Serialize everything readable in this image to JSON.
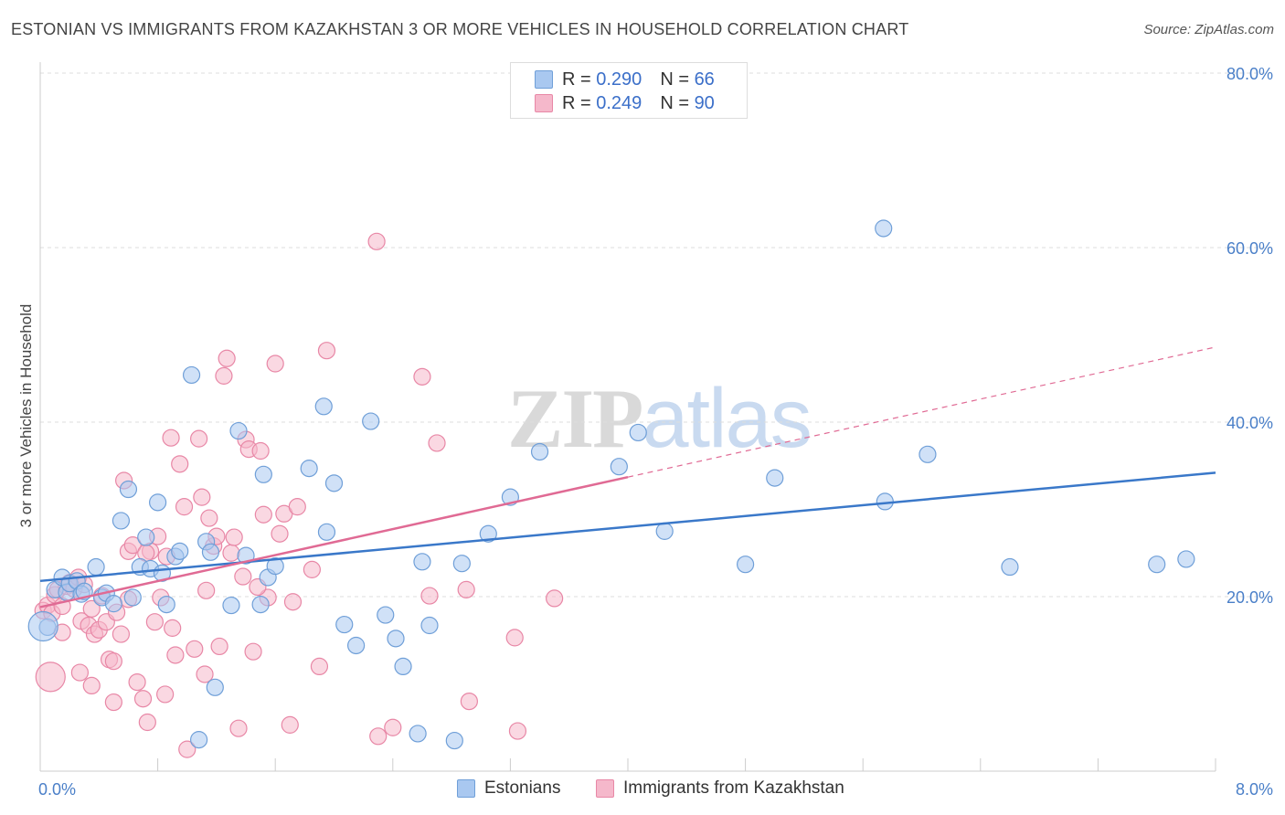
{
  "title": "ESTONIAN VS IMMIGRANTS FROM KAZAKHSTAN 3 OR MORE VEHICLES IN HOUSEHOLD CORRELATION CHART",
  "source": "Source: ZipAtlas.com",
  "watermark": {
    "zip": "ZIP",
    "atlas": "atlas"
  },
  "colors": {
    "estonians_fill": "#a9c8f0",
    "estonians_stroke": "#6f9fd8",
    "estonians_line": "#3a78c9",
    "kazakh_fill": "#f5b8cb",
    "kazakh_stroke": "#e887a6",
    "kazakh_line": "#e06a94",
    "tick_label": "#4a7fc8",
    "grid": "#dddddd"
  },
  "legend_top": [
    {
      "r_label": "R =",
      "r_value": "0.290",
      "n_label": "N =",
      "n_value": "66"
    },
    {
      "r_label": "R =",
      "r_value": "0.249",
      "n_label": "N =",
      "n_value": "90"
    }
  ],
  "chart_data": {
    "type": "scatter",
    "title": "ESTONIAN VS IMMIGRANTS FROM KAZAKHSTAN 3 OR MORE VEHICLES IN HOUSEHOLD CORRELATION CHART",
    "xlabel": "",
    "ylabel": "3 or more Vehicles in Household",
    "xlim": [
      0,
      8
    ],
    "ylim": [
      0,
      80
    ],
    "x_ticks": [
      0,
      8
    ],
    "x_tick_labels": [
      "0.0%",
      "8.0%"
    ],
    "y_ticks": [
      20,
      40,
      60,
      80
    ],
    "y_tick_labels": [
      "20.0%",
      "40.0%",
      "60.0%",
      "80.0%"
    ],
    "grid": true,
    "legend_position": "bottom-center",
    "series": [
      {
        "name": "Estonians",
        "trend": {
          "x0": 0,
          "y0": 21.8,
          "x1": 8,
          "y1": 34.2,
          "dashed_from": null
        },
        "points": [
          [
            0.05,
            16.5
          ],
          [
            0.1,
            20.8
          ],
          [
            0.15,
            22.2
          ],
          [
            0.18,
            20.5
          ],
          [
            0.2,
            21.5
          ],
          [
            0.25,
            21.8
          ],
          [
            0.28,
            20.3
          ],
          [
            0.3,
            20.6
          ],
          [
            0.38,
            23.4
          ],
          [
            0.42,
            19.9
          ],
          [
            0.45,
            20.4
          ],
          [
            0.5,
            19.2
          ],
          [
            0.55,
            28.7
          ],
          [
            0.6,
            32.3
          ],
          [
            0.63,
            19.9
          ],
          [
            0.68,
            23.4
          ],
          [
            0.72,
            26.8
          ],
          [
            0.75,
            23.2
          ],
          [
            0.8,
            30.8
          ],
          [
            0.83,
            22.7
          ],
          [
            0.86,
            19.1
          ],
          [
            0.92,
            24.6
          ],
          [
            0.95,
            25.2
          ],
          [
            1.03,
            45.4
          ],
          [
            1.08,
            3.6
          ],
          [
            1.13,
            26.3
          ],
          [
            1.16,
            25.1
          ],
          [
            1.19,
            9.6
          ],
          [
            1.3,
            19.0
          ],
          [
            1.35,
            39.0
          ],
          [
            1.4,
            24.7
          ],
          [
            1.5,
            19.1
          ],
          [
            1.52,
            34.0
          ],
          [
            1.55,
            22.2
          ],
          [
            1.6,
            23.5
          ],
          [
            1.83,
            34.7
          ],
          [
            1.93,
            41.8
          ],
          [
            1.95,
            27.4
          ],
          [
            2.0,
            33.0
          ],
          [
            2.07,
            16.8
          ],
          [
            2.15,
            14.4
          ],
          [
            2.25,
            40.1
          ],
          [
            2.35,
            17.9
          ],
          [
            2.42,
            15.2
          ],
          [
            2.47,
            12.0
          ],
          [
            2.57,
            4.3
          ],
          [
            2.6,
            24.0
          ],
          [
            2.65,
            16.7
          ],
          [
            2.82,
            3.5
          ],
          [
            2.87,
            23.8
          ],
          [
            3.05,
            27.2
          ],
          [
            3.2,
            31.4
          ],
          [
            3.4,
            36.6
          ],
          [
            3.94,
            34.9
          ],
          [
            4.07,
            38.8
          ],
          [
            4.25,
            27.5
          ],
          [
            4.8,
            23.7
          ],
          [
            5.0,
            33.6
          ],
          [
            5.75,
            30.9
          ],
          [
            5.74,
            62.2
          ],
          [
            6.04,
            36.3
          ],
          [
            6.6,
            23.4
          ],
          [
            7.6,
            23.7
          ],
          [
            7.8,
            24.3
          ]
        ],
        "points_large": [
          [
            0.02,
            16.6
          ]
        ]
      },
      {
        "name": "Immigrants from Kazakhstan",
        "trend": {
          "x0": 0,
          "y0": 18.8,
          "x1": 8,
          "y1": 48.6,
          "dashed_from": 4.0
        },
        "points": [
          [
            0.02,
            18.4
          ],
          [
            0.05,
            19.0
          ],
          [
            0.08,
            18.1
          ],
          [
            0.1,
            20.2
          ],
          [
            0.12,
            20.8
          ],
          [
            0.15,
            18.9
          ],
          [
            0.18,
            21.2
          ],
          [
            0.2,
            21.6
          ],
          [
            0.23,
            20.9
          ],
          [
            0.26,
            22.2
          ],
          [
            0.28,
            17.2
          ],
          [
            0.3,
            21.4
          ],
          [
            0.33,
            16.7
          ],
          [
            0.35,
            18.6
          ],
          [
            0.37,
            15.7
          ],
          [
            0.4,
            16.2
          ],
          [
            0.42,
            20.1
          ],
          [
            0.45,
            17.1
          ],
          [
            0.47,
            12.8
          ],
          [
            0.5,
            7.9
          ],
          [
            0.52,
            18.2
          ],
          [
            0.55,
            15.7
          ],
          [
            0.57,
            33.3
          ],
          [
            0.6,
            25.2
          ],
          [
            0.63,
            25.9
          ],
          [
            0.66,
            10.2
          ],
          [
            0.7,
            8.3
          ],
          [
            0.73,
            5.6
          ],
          [
            0.75,
            25.2
          ],
          [
            0.78,
            17.1
          ],
          [
            0.8,
            26.9
          ],
          [
            0.82,
            19.9
          ],
          [
            0.86,
            24.6
          ],
          [
            0.89,
            38.2
          ],
          [
            0.9,
            16.4
          ],
          [
            0.92,
            13.3
          ],
          [
            0.95,
            35.2
          ],
          [
            0.98,
            30.3
          ],
          [
            1.0,
            2.5
          ],
          [
            1.05,
            14.0
          ],
          [
            1.08,
            38.1
          ],
          [
            1.1,
            31.4
          ],
          [
            1.12,
            11.1
          ],
          [
            1.15,
            29.0
          ],
          [
            1.18,
            25.8
          ],
          [
            1.2,
            26.9
          ],
          [
            1.22,
            14.3
          ],
          [
            1.25,
            45.3
          ],
          [
            1.27,
            47.3
          ],
          [
            1.3,
            25.0
          ],
          [
            1.32,
            26.8
          ],
          [
            1.35,
            4.9
          ],
          [
            1.38,
            22.3
          ],
          [
            1.4,
            38.0
          ],
          [
            1.42,
            36.9
          ],
          [
            1.45,
            13.7
          ],
          [
            1.5,
            36.7
          ],
          [
            1.52,
            29.4
          ],
          [
            1.55,
            19.9
          ],
          [
            1.6,
            46.7
          ],
          [
            1.63,
            27.2
          ],
          [
            1.66,
            29.5
          ],
          [
            1.7,
            5.3
          ],
          [
            1.72,
            19.4
          ],
          [
            1.75,
            30.3
          ],
          [
            1.85,
            23.1
          ],
          [
            1.9,
            12.0
          ],
          [
            1.95,
            48.2
          ],
          [
            2.3,
            4.0
          ],
          [
            2.29,
            60.7
          ],
          [
            2.4,
            5.0
          ],
          [
            2.6,
            45.2
          ],
          [
            2.65,
            20.1
          ],
          [
            2.7,
            37.6
          ],
          [
            2.9,
            20.8
          ],
          [
            2.92,
            8.0
          ],
          [
            3.23,
            15.3
          ],
          [
            3.25,
            4.6
          ],
          [
            3.5,
            19.8
          ],
          [
            0.5,
            12.6
          ],
          [
            0.27,
            11.3
          ],
          [
            0.15,
            15.9
          ],
          [
            0.6,
            19.7
          ],
          [
            0.35,
            9.8
          ],
          [
            0.85,
            8.8
          ],
          [
            1.13,
            20.7
          ],
          [
            0.72,
            25.0
          ],
          [
            1.48,
            21.1
          ]
        ],
        "points_large": [
          [
            0.07,
            10.8
          ]
        ]
      }
    ]
  }
}
